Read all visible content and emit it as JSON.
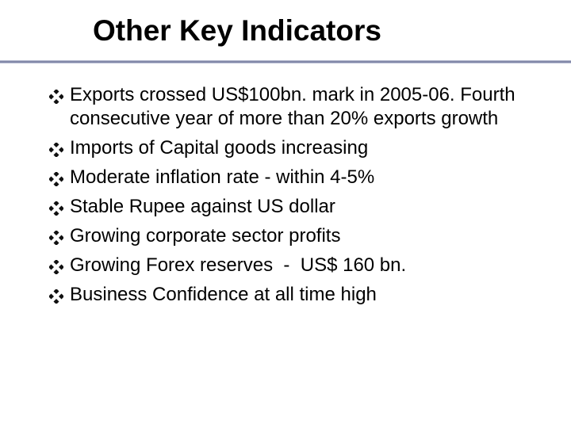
{
  "title": "Other Key Indicators",
  "bullets": [
    "Exports crossed US$100bn. mark in 2005-06. Fourth consecutive year of more than 20% exports growth",
    "Imports of Capital goods increasing",
    "Moderate inflation rate - within 4-5%",
    "Stable Rupee against US dollar",
    "Growing corporate sector profits",
    "Growing Forex reserves  -  US$ 160 bn.",
    "Business Confidence at all time high"
  ]
}
